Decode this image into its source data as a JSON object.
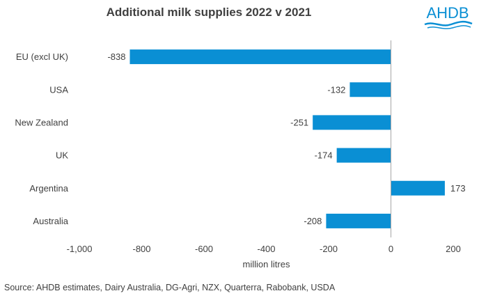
{
  "chart_data": {
    "type": "bar",
    "orientation": "horizontal",
    "title": "Additional milk supplies 2022 v 2021",
    "categories": [
      "EU (excl UK)",
      "USA",
      "New Zealand",
      "UK",
      "Argentina",
      "Australia"
    ],
    "values": [
      -838,
      -132,
      -251,
      -174,
      173,
      -208
    ],
    "data_labels": [
      "-838",
      "-132",
      "-251",
      "-174",
      "173",
      "-208"
    ],
    "xlabel": "million litres",
    "xlim": [
      -1000,
      200
    ],
    "xticks": [
      -1000,
      -800,
      -600,
      -400,
      -200,
      0,
      200
    ],
    "xtick_labels": [
      "-1,000",
      "-800",
      "-600",
      "-400",
      "-200",
      "0",
      "200"
    ],
    "grid": false,
    "bar_color": "#0A8FD4"
  },
  "logo": {
    "text": "AHDB",
    "color": "#0A8FD4"
  },
  "source": "Source: AHDB estimates, Dairy Australia, DG-Agri, NZX, Quarterra, Rabobank, USDA"
}
